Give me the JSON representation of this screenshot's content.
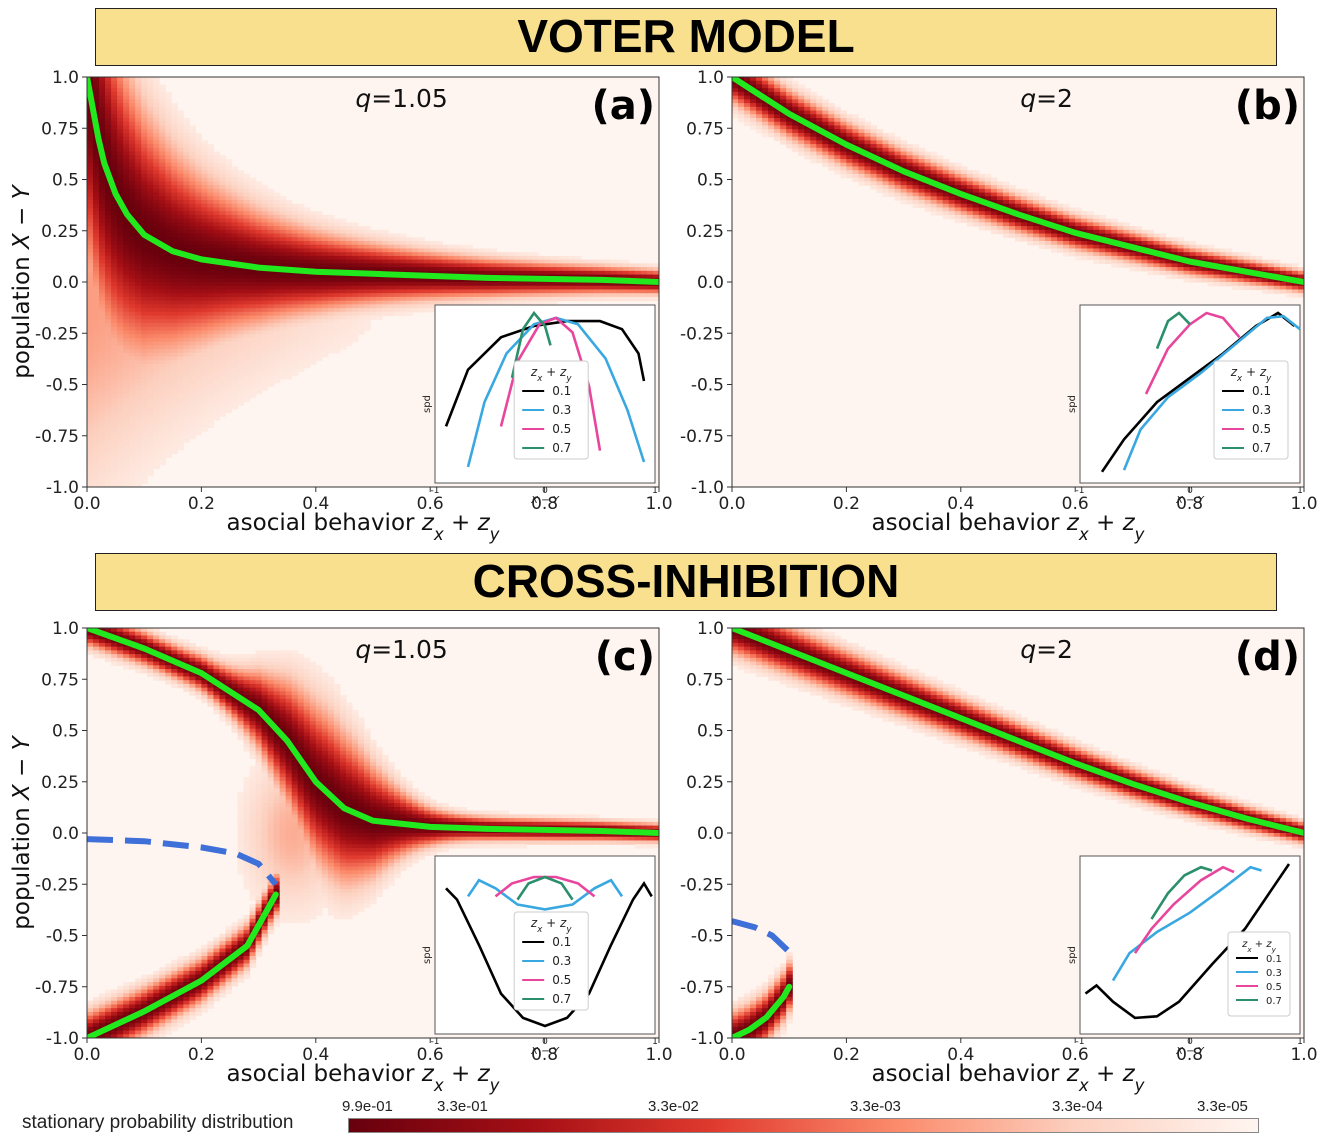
{
  "banners": {
    "top": "VOTER MODEL",
    "bottom": "CROSS-INHIBITION"
  },
  "colorbar": {
    "label": "stationary probability distribution",
    "ticks": [
      "9.9e-01",
      "3.3e-01",
      "3.3e-02",
      "3.3e-03",
      "3.3e-04",
      "3.3e-05"
    ],
    "colors": [
      "#67000d",
      "#a50f15",
      "#e03a2e",
      "#fb8a6a",
      "#fcd0bf",
      "#fff5f0"
    ]
  },
  "chart_data": [
    {
      "type": "heatmap",
      "panel": "(a)",
      "annotation": "q=1.05",
      "model": "voter",
      "xlabel": "asocial behavior z_x + z_y",
      "ylabel": "population X − Y",
      "xlim": [
        0,
        1
      ],
      "ylim": [
        -1,
        1
      ],
      "xticks": [
        "0.0",
        "0.2",
        "0.4",
        "0.6",
        "0.8",
        "1.0"
      ],
      "yticks": [
        "1.0",
        "0.75",
        "0.5",
        "0.25",
        "0.0",
        "-0.25",
        "-0.5",
        "-0.75",
        "-1.0"
      ],
      "stable_branches": [
        [
          [
            0.0,
            1.0
          ],
          [
            0.01,
            0.85
          ],
          [
            0.02,
            0.7
          ],
          [
            0.03,
            0.58
          ],
          [
            0.05,
            0.43
          ],
          [
            0.07,
            0.33
          ],
          [
            0.1,
            0.23
          ],
          [
            0.15,
            0.15
          ],
          [
            0.2,
            0.11
          ],
          [
            0.3,
            0.07
          ],
          [
            0.4,
            0.05
          ],
          [
            0.5,
            0.04
          ],
          [
            0.6,
            0.03
          ],
          [
            0.7,
            0.02
          ],
          [
            0.8,
            0.015
          ],
          [
            0.9,
            0.01
          ],
          [
            1.0,
            0.0
          ]
        ]
      ],
      "unstable_branches": [],
      "inset": {
        "xlabel": "X − Y",
        "ylabel": "spd",
        "xticks": [
          "-1",
          "0",
          "1"
        ],
        "legend_title": "z_x + z_y",
        "legend_items": [
          "0.1",
          "0.3",
          "0.5",
          "0.7"
        ],
        "series": [
          {
            "name": "0.1",
            "points": [
              [
                -0.9,
                0.3
              ],
              [
                -0.7,
                0.65
              ],
              [
                -0.4,
                0.85
              ],
              [
                -0.1,
                0.92
              ],
              [
                0.2,
                0.95
              ],
              [
                0.5,
                0.95
              ],
              [
                0.7,
                0.9
              ],
              [
                0.85,
                0.75
              ],
              [
                0.9,
                0.58
              ]
            ]
          },
          {
            "name": "0.3",
            "points": [
              [
                -0.7,
                0.05
              ],
              [
                -0.55,
                0.45
              ],
              [
                -0.35,
                0.75
              ],
              [
                -0.1,
                0.93
              ],
              [
                0.1,
                0.97
              ],
              [
                0.3,
                0.93
              ],
              [
                0.55,
                0.72
              ],
              [
                0.75,
                0.4
              ],
              [
                0.9,
                0.08
              ]
            ]
          },
          {
            "name": "0.5",
            "points": [
              [
                -0.4,
                0.3
              ],
              [
                -0.25,
                0.7
              ],
              [
                -0.05,
                0.93
              ],
              [
                0.1,
                0.97
              ],
              [
                0.25,
                0.88
              ],
              [
                0.4,
                0.55
              ],
              [
                0.5,
                0.15
              ]
            ]
          },
          {
            "name": "0.7",
            "points": [
              [
                -0.3,
                0.6
              ],
              [
                -0.2,
                0.9
              ],
              [
                -0.1,
                1.0
              ],
              [
                0.0,
                0.92
              ],
              [
                0.05,
                0.8
              ]
            ]
          }
        ]
      }
    },
    {
      "type": "heatmap",
      "panel": "(b)",
      "annotation": "q=2",
      "model": "voter",
      "xlabel": "asocial behavior z_x + z_y",
      "ylabel": "",
      "xlim": [
        0,
        1
      ],
      "ylim": [
        -1,
        1
      ],
      "xticks": [
        "0.0",
        "0.2",
        "0.4",
        "0.6",
        "0.8",
        "1.0"
      ],
      "yticks": [
        "1.0",
        "0.75",
        "0.5",
        "0.25",
        "0.0",
        "-0.25",
        "-0.5",
        "-0.75",
        "-1.0"
      ],
      "stable_branches": [
        [
          [
            0.0,
            1.0
          ],
          [
            0.1,
            0.82
          ],
          [
            0.2,
            0.67
          ],
          [
            0.3,
            0.54
          ],
          [
            0.4,
            0.43
          ],
          [
            0.5,
            0.33
          ],
          [
            0.6,
            0.24
          ],
          [
            0.7,
            0.17
          ],
          [
            0.8,
            0.1
          ],
          [
            0.9,
            0.05
          ],
          [
            1.0,
            0.0
          ]
        ]
      ],
      "unstable_branches": [],
      "inset": {
        "xlabel": "X − Y",
        "ylabel": "spd",
        "xticks": [
          "-1",
          "0",
          "1"
        ],
        "legend_title": "z_x + z_y",
        "legend_items": [
          "0.1",
          "0.3",
          "0.5",
          "0.7"
        ],
        "series": [
          {
            "name": "0.1",
            "points": [
              [
                -0.8,
                0.02
              ],
              [
                -0.6,
                0.22
              ],
              [
                -0.3,
                0.45
              ],
              [
                0.0,
                0.6
              ],
              [
                0.3,
                0.75
              ],
              [
                0.6,
                0.92
              ],
              [
                0.8,
                1.0
              ],
              [
                0.95,
                0.92
              ]
            ]
          },
          {
            "name": "0.3",
            "points": [
              [
                -0.6,
                0.03
              ],
              [
                -0.45,
                0.28
              ],
              [
                -0.2,
                0.48
              ],
              [
                0.1,
                0.63
              ],
              [
                0.4,
                0.8
              ],
              [
                0.7,
                0.97
              ],
              [
                0.85,
                0.98
              ],
              [
                1.0,
                0.9
              ]
            ]
          },
          {
            "name": "0.5",
            "points": [
              [
                -0.4,
                0.5
              ],
              [
                -0.2,
                0.78
              ],
              [
                0.0,
                0.93
              ],
              [
                0.15,
                1.0
              ],
              [
                0.3,
                0.97
              ],
              [
                0.45,
                0.85
              ]
            ]
          },
          {
            "name": "0.7",
            "points": [
              [
                -0.3,
                0.78
              ],
              [
                -0.2,
                0.95
              ],
              [
                -0.1,
                1.0
              ],
              [
                0.0,
                0.93
              ]
            ]
          }
        ]
      }
    },
    {
      "type": "heatmap",
      "panel": "(c)",
      "annotation": "q=1.05",
      "model": "cross-inhibition",
      "xlabel": "asocial behavior z_x + z_y",
      "ylabel": "population X − Y",
      "xlim": [
        0,
        1
      ],
      "ylim": [
        -1,
        1
      ],
      "xticks": [
        "0.0",
        "0.2",
        "0.4",
        "0.6",
        "0.8",
        "1.0"
      ],
      "yticks": [
        "1.0",
        "0.75",
        "0.5",
        "0.25",
        "0.0",
        "-0.25",
        "-0.5",
        "-0.75",
        "-1.0"
      ],
      "stable_branches": [
        [
          [
            0.0,
            1.0
          ],
          [
            0.1,
            0.9
          ],
          [
            0.2,
            0.78
          ],
          [
            0.3,
            0.6
          ],
          [
            0.35,
            0.45
          ],
          [
            0.4,
            0.25
          ],
          [
            0.45,
            0.12
          ],
          [
            0.5,
            0.06
          ],
          [
            0.6,
            0.03
          ],
          [
            0.7,
            0.02
          ],
          [
            0.8,
            0.015
          ],
          [
            0.9,
            0.01
          ],
          [
            1.0,
            0.0
          ]
        ],
        [
          [
            0.0,
            -1.0
          ],
          [
            0.1,
            -0.87
          ],
          [
            0.2,
            -0.72
          ],
          [
            0.28,
            -0.55
          ],
          [
            0.33,
            -0.3
          ]
        ]
      ],
      "unstable_branches": [
        [
          [
            0.0,
            -0.03
          ],
          [
            0.1,
            -0.04
          ],
          [
            0.2,
            -0.07
          ],
          [
            0.26,
            -0.1
          ],
          [
            0.3,
            -0.15
          ],
          [
            0.33,
            -0.25
          ]
        ]
      ],
      "inset": {
        "xlabel": "X − Y",
        "ylabel": "spd",
        "xticks": [
          "-1",
          "0",
          "1"
        ],
        "legend_title": "z_x + z_y",
        "legend_items": [
          "0.1",
          "0.3",
          "0.5",
          "0.7"
        ],
        "series": [
          {
            "name": "0.1",
            "points": [
              [
                -0.9,
                0.85
              ],
              [
                -0.8,
                0.78
              ],
              [
                -0.6,
                0.5
              ],
              [
                -0.4,
                0.2
              ],
              [
                -0.2,
                0.05
              ],
              [
                0.0,
                0.0
              ],
              [
                0.2,
                0.05
              ],
              [
                0.4,
                0.2
              ],
              [
                0.6,
                0.5
              ],
              [
                0.8,
                0.78
              ],
              [
                0.9,
                0.88
              ],
              [
                0.97,
                0.8
              ]
            ]
          },
          {
            "name": "0.3",
            "points": [
              [
                -0.7,
                0.8
              ],
              [
                -0.6,
                0.9
              ],
              [
                -0.45,
                0.85
              ],
              [
                -0.25,
                0.75
              ],
              [
                0.0,
                0.72
              ],
              [
                0.25,
                0.75
              ],
              [
                0.45,
                0.85
              ],
              [
                0.6,
                0.9
              ],
              [
                0.7,
                0.8
              ]
            ]
          },
          {
            "name": "0.5",
            "points": [
              [
                -0.45,
                0.8
              ],
              [
                -0.3,
                0.88
              ],
              [
                -0.1,
                0.92
              ],
              [
                0.1,
                0.92
              ],
              [
                0.3,
                0.88
              ],
              [
                0.45,
                0.8
              ]
            ]
          },
          {
            "name": "0.7",
            "points": [
              [
                -0.25,
                0.78
              ],
              [
                -0.15,
                0.88
              ],
              [
                0.0,
                0.92
              ],
              [
                0.15,
                0.88
              ],
              [
                0.25,
                0.78
              ]
            ]
          }
        ]
      }
    },
    {
      "type": "heatmap",
      "panel": "(d)",
      "annotation": "q=2",
      "model": "cross-inhibition",
      "xlabel": "asocial behavior z_x + z_y",
      "ylabel": "",
      "xlim": [
        0,
        1
      ],
      "ylim": [
        -1,
        1
      ],
      "xticks": [
        "0.0",
        "0.2",
        "0.4",
        "0.6",
        "0.8",
        "1.0"
      ],
      "yticks": [
        "1.0",
        "0.75",
        "0.5",
        "0.25",
        "0.0",
        "-0.25",
        "-0.5",
        "-0.75",
        "-1.0"
      ],
      "stable_branches": [
        [
          [
            0.0,
            1.0
          ],
          [
            0.1,
            0.89
          ],
          [
            0.2,
            0.78
          ],
          [
            0.3,
            0.67
          ],
          [
            0.4,
            0.56
          ],
          [
            0.5,
            0.45
          ],
          [
            0.6,
            0.34
          ],
          [
            0.7,
            0.24
          ],
          [
            0.8,
            0.15
          ],
          [
            0.9,
            0.07
          ],
          [
            1.0,
            0.0
          ]
        ],
        [
          [
            0.0,
            -1.0
          ],
          [
            0.03,
            -0.96
          ],
          [
            0.06,
            -0.9
          ],
          [
            0.09,
            -0.8
          ],
          [
            0.1,
            -0.75
          ]
        ]
      ],
      "unstable_branches": [
        [
          [
            0.0,
            -0.43
          ],
          [
            0.04,
            -0.46
          ],
          [
            0.07,
            -0.5
          ],
          [
            0.1,
            -0.58
          ]
        ]
      ],
      "inset": {
        "xlabel": "X − Y",
        "ylabel": "spd",
        "xticks": [
          "-1",
          "0",
          "1"
        ],
        "legend_title": "z_x + z_y",
        "legend_items": [
          "0.1",
          "0.3",
          "0.5",
          "0.7"
        ],
        "series": [
          {
            "name": "0.1",
            "points": [
              [
                -0.95,
                0.2
              ],
              [
                -0.85,
                0.25
              ],
              [
                -0.7,
                0.15
              ],
              [
                -0.5,
                0.05
              ],
              [
                -0.3,
                0.06
              ],
              [
                -0.1,
                0.15
              ],
              [
                0.2,
                0.38
              ],
              [
                0.5,
                0.6
              ],
              [
                0.75,
                0.85
              ],
              [
                0.9,
                1.0
              ]
            ]
          },
          {
            "name": "0.3",
            "points": [
              [
                -0.7,
                0.28
              ],
              [
                -0.55,
                0.45
              ],
              [
                -0.3,
                0.58
              ],
              [
                0.0,
                0.7
              ],
              [
                0.3,
                0.85
              ],
              [
                0.55,
                0.98
              ],
              [
                0.65,
                0.96
              ]
            ]
          },
          {
            "name": "0.5",
            "points": [
              [
                -0.5,
                0.45
              ],
              [
                -0.35,
                0.6
              ],
              [
                -0.15,
                0.75
              ],
              [
                0.1,
                0.9
              ],
              [
                0.3,
                0.98
              ],
              [
                0.4,
                0.95
              ]
            ]
          },
          {
            "name": "0.7",
            "points": [
              [
                -0.35,
                0.66
              ],
              [
                -0.2,
                0.82
              ],
              [
                -0.05,
                0.93
              ],
              [
                0.1,
                0.98
              ],
              [
                0.2,
                0.96
              ]
            ]
          }
        ]
      }
    }
  ]
}
